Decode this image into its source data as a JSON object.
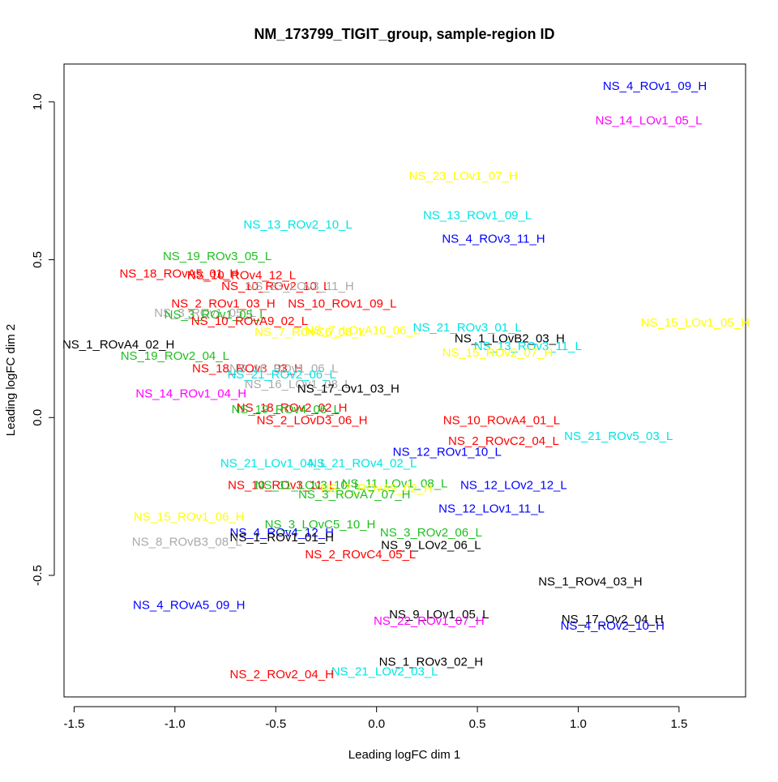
{
  "chart_data": {
    "type": "scatter",
    "title": "NM_173799_TIGIT_group, sample-region ID",
    "xlabel": "Leading logFC dim 1",
    "ylabel": "Leading logFC dim 2",
    "xlim": [
      -1.55,
      1.83
    ],
    "ylim": [
      -0.885,
      1.12
    ],
    "x_ticks": [
      -1.5,
      -1.0,
      -0.5,
      0.0,
      0.5,
      1.0,
      1.5
    ],
    "x_tick_labels": [
      "-1.5",
      "-1.0",
      "-0.5",
      "0.0",
      "0.5",
      "1.0",
      "1.5"
    ],
    "y_ticks": [
      -0.5,
      0.0,
      0.5,
      1.0
    ],
    "y_tick_labels": [
      "-0.5",
      "0.0",
      "0.5",
      "1.0"
    ],
    "grid": false,
    "legend": "none",
    "colors": {
      "black": "#000000",
      "red": "#ff0000",
      "green": "#1fbf1f",
      "blue": "#0000ff",
      "cyan": "#00e5e5",
      "magenta": "#ff00ff",
      "yellow": "#ffff00",
      "gray": "#aaaaaa"
    },
    "points": [
      {
        "label": "NS_4_ROv1_09_H",
        "x": 1.38,
        "y": 1.05,
        "color": "blue"
      },
      {
        "label": "NS_14_LOv1_05_L",
        "x": 1.35,
        "y": 0.94,
        "color": "magenta"
      },
      {
        "label": "NS_23_LOv1_07_H",
        "x": 0.43,
        "y": 0.765,
        "color": "yellow"
      },
      {
        "label": "NS_13_ROv2_10_L",
        "x": -0.39,
        "y": 0.61,
        "color": "cyan"
      },
      {
        "label": "NS_13_ROv1_09_L",
        "x": 0.5,
        "y": 0.64,
        "color": "cyan"
      },
      {
        "label": "NS_4_ROv3_11_H",
        "x": 0.58,
        "y": 0.565,
        "color": "blue"
      },
      {
        "label": "NS_19_ROv3_05_L",
        "x": -0.79,
        "y": 0.51,
        "color": "green"
      },
      {
        "label": "NS_18_ROvA5_01_H",
        "x": -0.98,
        "y": 0.455,
        "color": "red"
      },
      {
        "label": "NS_10_ROv4_12_L",
        "x": -0.67,
        "y": 0.45,
        "color": "red"
      },
      {
        "label": "NS_10_ROv2_10_L",
        "x": -0.5,
        "y": 0.415,
        "color": "red"
      },
      {
        "label": "NS_23_LOv3_11_H",
        "x": -0.38,
        "y": 0.415,
        "color": "gray"
      },
      {
        "label": "NS_2_ROv1_03_H",
        "x": -0.76,
        "y": 0.36,
        "color": "red"
      },
      {
        "label": "NS_10_ROv1_09_L",
        "x": -0.17,
        "y": 0.36,
        "color": "red"
      },
      {
        "label": "NS_3_ROv1_05_L",
        "x": -0.85,
        "y": 0.33,
        "color": "gray"
      },
      {
        "label": "NS_3_ROv1_05_L",
        "x": -0.8,
        "y": 0.325,
        "color": "green"
      },
      {
        "label": "NS_10_ROvA9_02_L",
        "x": -0.63,
        "y": 0.305,
        "color": "red"
      },
      {
        "label": "NS_7_ROvC6_08_L",
        "x": -0.33,
        "y": 0.27,
        "color": "yellow"
      },
      {
        "label": "NS_7_LOvA10_06_L",
        "x": -0.07,
        "y": 0.275,
        "color": "yellow"
      },
      {
        "label": "NS_15_LOv1_05_H",
        "x": 1.58,
        "y": 0.3,
        "color": "yellow"
      },
      {
        "label": "NS_1_ROvA4_02_H",
        "x": -1.28,
        "y": 0.23,
        "color": "black"
      },
      {
        "label": "NS_21_ROv3_01_L",
        "x": 0.45,
        "y": 0.285,
        "color": "cyan"
      },
      {
        "label": "NS_1_LOvB2_03_H",
        "x": 0.66,
        "y": 0.25,
        "color": "black"
      },
      {
        "label": "NS_13_ROv3_11_L",
        "x": 0.75,
        "y": 0.225,
        "color": "cyan"
      },
      {
        "label": "NS_15_ROv2_07_H",
        "x": 0.6,
        "y": 0.205,
        "color": "yellow"
      },
      {
        "label": "NS_19_ROv2_04_L",
        "x": -1.0,
        "y": 0.195,
        "color": "green"
      },
      {
        "label": "NS_18_ROv3_03_H",
        "x": -0.64,
        "y": 0.155,
        "color": "red"
      },
      {
        "label": "NS_16_ROv1_06_L",
        "x": -0.46,
        "y": 0.155,
        "color": "gray"
      },
      {
        "label": "NS_21_ROv2_06_L",
        "x": -0.47,
        "y": 0.135,
        "color": "cyan"
      },
      {
        "label": "NS_16_LOv1_08_L",
        "x": -0.39,
        "y": 0.105,
        "color": "gray"
      },
      {
        "label": "NS_17_Ov1_03_H",
        "x": -0.14,
        "y": 0.09,
        "color": "black"
      },
      {
        "label": "NS_14_ROv1_04_H",
        "x": -0.92,
        "y": 0.075,
        "color": "magenta"
      },
      {
        "label": "NS_18_ROv2_02_H",
        "x": -0.42,
        "y": 0.03,
        "color": "red"
      },
      {
        "label": "NS_19_ROv4_06_L",
        "x": -0.45,
        "y": 0.025,
        "color": "green"
      },
      {
        "label": "NS_2_LOvD3_06_H",
        "x": -0.32,
        "y": -0.01,
        "color": "red"
      },
      {
        "label": "NS_10_ROvA4_01_L",
        "x": 0.62,
        "y": -0.01,
        "color": "red"
      },
      {
        "label": "NS_2_ROvC2_04_L",
        "x": 0.63,
        "y": -0.075,
        "color": "red"
      },
      {
        "label": "NS_21_ROv5_03_L",
        "x": 1.2,
        "y": -0.06,
        "color": "cyan"
      },
      {
        "label": "NS_12_ROv1_10_L",
        "x": 0.35,
        "y": -0.11,
        "color": "blue"
      },
      {
        "label": "NS_21_LOv1_04_L",
        "x": -0.51,
        "y": -0.145,
        "color": "cyan"
      },
      {
        "label": "NS_21_ROv4_02_L",
        "x": -0.07,
        "y": -0.145,
        "color": "cyan"
      },
      {
        "label": "NS_10_ROv3_11_L",
        "x": -0.47,
        "y": -0.215,
        "color": "red"
      },
      {
        "label": "NS_11_LOv3_10_L",
        "x": -0.34,
        "y": -0.215,
        "color": "green"
      },
      {
        "label": "NS_11_LOv1_08_L",
        "x": 0.09,
        "y": -0.21,
        "color": "green"
      },
      {
        "label": "NS_7_ROvA9_02_H",
        "x": 0.0,
        "y": -0.225,
        "color": "yellow"
      },
      {
        "label": "NS_3_ROvA7_07_H",
        "x": -0.11,
        "y": -0.245,
        "color": "green"
      },
      {
        "label": "NS_12_LOv2_12_L",
        "x": 0.68,
        "y": -0.215,
        "color": "blue"
      },
      {
        "label": "NS_12_LOv1_11_L",
        "x": 0.57,
        "y": -0.29,
        "color": "blue"
      },
      {
        "label": "NS_15_ROv1_06_H",
        "x": -0.93,
        "y": -0.315,
        "color": "yellow"
      },
      {
        "label": "NS_3_LOvC5_10_H",
        "x": -0.28,
        "y": -0.34,
        "color": "green"
      },
      {
        "label": "NS_4_ROv4_12_H",
        "x": -0.47,
        "y": -0.365,
        "color": "blue"
      },
      {
        "label": "NS_1_ROv1_01_H",
        "x": -0.47,
        "y": -0.38,
        "color": "black"
      },
      {
        "label": "NS_3_ROv2_06_L",
        "x": 0.27,
        "y": -0.365,
        "color": "green"
      },
      {
        "label": "NS_9_LOv2_06_L",
        "x": 0.27,
        "y": -0.405,
        "color": "black"
      },
      {
        "label": "NS_8_ROvB3_08_L",
        "x": -0.94,
        "y": -0.395,
        "color": "gray"
      },
      {
        "label": "NS_2_ROvC4_05_L",
        "x": -0.08,
        "y": -0.435,
        "color": "red"
      },
      {
        "label": "NS_1_ROv4_03_H",
        "x": 1.06,
        "y": -0.52,
        "color": "black"
      },
      {
        "label": "NS_4_ROvA5_09_H",
        "x": -0.93,
        "y": -0.595,
        "color": "blue"
      },
      {
        "label": "NS_9_LOv1_05_L",
        "x": 0.31,
        "y": -0.625,
        "color": "black"
      },
      {
        "label": "NS_22_ROv1_07_H",
        "x": 0.26,
        "y": -0.645,
        "color": "magenta"
      },
      {
        "label": "NS_17_Ov2_04_H",
        "x": 1.17,
        "y": -0.64,
        "color": "black"
      },
      {
        "label": "NS_4_ROv2_10_H",
        "x": 1.17,
        "y": -0.66,
        "color": "blue"
      },
      {
        "label": "NS_1_ROv3_02_H",
        "x": 0.27,
        "y": -0.775,
        "color": "black"
      },
      {
        "label": "NS_21_LOv2_03_L",
        "x": 0.04,
        "y": -0.805,
        "color": "cyan"
      },
      {
        "label": "NS_2_ROv2_04_H",
        "x": -0.47,
        "y": -0.815,
        "color": "red"
      }
    ]
  }
}
